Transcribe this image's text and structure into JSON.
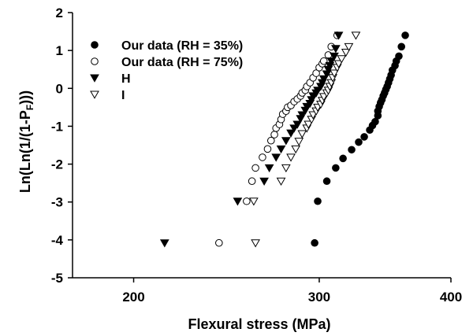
{
  "chart_data": {
    "type": "scatter",
    "title": "",
    "xlabel": "Flexural stress (MPa)",
    "ylabel_parts": [
      "Ln(Ln(1/(1-P",
      "F",
      ")))"
    ],
    "xscale": "log",
    "xlim": [
      175,
      400
    ],
    "ylim": [
      -5,
      2
    ],
    "xticks": [
      200,
      300,
      400
    ],
    "yticks": [
      2,
      1,
      0,
      -1,
      -2,
      -3,
      -4,
      -5
    ],
    "grid": false,
    "legend_position": "top-left",
    "series": [
      {
        "name": "Our data (RH = 35%)",
        "marker": "filled-circle",
        "points": [
          [
            297,
            -4.08
          ],
          [
            299,
            -2.98
          ],
          [
            305,
            -2.45
          ],
          [
            311,
            -2.1
          ],
          [
            316,
            -1.85
          ],
          [
            322,
            -1.62
          ],
          [
            327,
            -1.42
          ],
          [
            331,
            -1.28
          ],
          [
            335,
            -1.1
          ],
          [
            337,
            -0.98
          ],
          [
            339,
            -0.88
          ],
          [
            341,
            -0.72
          ],
          [
            341,
            -0.6
          ],
          [
            342,
            -0.48
          ],
          [
            343,
            -0.38
          ],
          [
            344,
            -0.3
          ],
          [
            345,
            -0.2
          ],
          [
            346,
            -0.12
          ],
          [
            347,
            -0.03
          ],
          [
            348,
            0.05
          ],
          [
            349,
            0.15
          ],
          [
            350,
            0.25
          ],
          [
            351,
            0.35
          ],
          [
            352,
            0.48
          ],
          [
            354,
            0.6
          ],
          [
            355,
            0.72
          ],
          [
            357,
            0.85
          ],
          [
            359,
            1.1
          ],
          [
            362,
            1.4
          ]
        ]
      },
      {
        "name": "Our data (RH = 75%)",
        "marker": "open-circle",
        "points": [
          [
            241,
            -4.08
          ],
          [
            256,
            -2.98
          ],
          [
            259,
            -2.45
          ],
          [
            261,
            -2.1
          ],
          [
            265,
            -1.82
          ],
          [
            268,
            -1.6
          ],
          [
            270,
            -1.38
          ],
          [
            272,
            -1.22
          ],
          [
            273,
            -1.05
          ],
          [
            275,
            -0.95
          ],
          [
            276,
            -0.82
          ],
          [
            277,
            -0.68
          ],
          [
            279,
            -0.6
          ],
          [
            280,
            -0.5
          ],
          [
            282,
            -0.45
          ],
          [
            284,
            -0.35
          ],
          [
            286,
            -0.28
          ],
          [
            288,
            -0.2
          ],
          [
            289,
            -0.12
          ],
          [
            291,
            -0.05
          ],
          [
            292,
            0.05
          ],
          [
            294,
            0.15
          ],
          [
            296,
            0.28
          ],
          [
            298,
            0.4
          ],
          [
            300,
            0.55
          ],
          [
            302,
            0.65
          ],
          [
            303,
            0.72
          ],
          [
            306,
            0.88
          ],
          [
            308,
            1.1
          ],
          [
            312,
            1.4
          ]
        ]
      },
      {
        "name": "H",
        "marker": "filled-triangle-down",
        "points": [
          [
            214,
            -4.08
          ],
          [
            251,
            -2.98
          ],
          [
            266,
            -2.45
          ],
          [
            269,
            -2.1
          ],
          [
            273,
            -1.82
          ],
          [
            276,
            -1.6
          ],
          [
            279,
            -1.38
          ],
          [
            282,
            -1.18
          ],
          [
            284,
            -1.05
          ],
          [
            286,
            -0.95
          ],
          [
            288,
            -0.8
          ],
          [
            289,
            -0.7
          ],
          [
            291,
            -0.58
          ],
          [
            292,
            -0.48
          ],
          [
            294,
            -0.4
          ],
          [
            295,
            -0.3
          ],
          [
            296,
            -0.2
          ],
          [
            298,
            -0.12
          ],
          [
            299,
            -0.05
          ],
          [
            301,
            0.05
          ],
          [
            302,
            0.15
          ],
          [
            303,
            0.25
          ],
          [
            305,
            0.38
          ],
          [
            306,
            0.5
          ],
          [
            307,
            0.6
          ],
          [
            308,
            0.72
          ],
          [
            310,
            0.85
          ],
          [
            311,
            1.05
          ],
          [
            313,
            1.4
          ]
        ]
      },
      {
        "name": "I",
        "marker": "open-triangle-down",
        "points": [
          [
            261,
            -4.08
          ],
          [
            260,
            -2.98
          ],
          [
            276,
            -2.45
          ],
          [
            279,
            -2.1
          ],
          [
            282,
            -1.82
          ],
          [
            285,
            -1.6
          ],
          [
            287,
            -1.4
          ],
          [
            289,
            -1.2
          ],
          [
            292,
            -1.05
          ],
          [
            293,
            -0.95
          ],
          [
            295,
            -0.82
          ],
          [
            296,
            -0.7
          ],
          [
            298,
            -0.6
          ],
          [
            299,
            -0.5
          ],
          [
            301,
            -0.42
          ],
          [
            302,
            -0.32
          ],
          [
            303,
            -0.22
          ],
          [
            305,
            -0.12
          ],
          [
            306,
            -0.05
          ],
          [
            307,
            0.05
          ],
          [
            308,
            0.15
          ],
          [
            309,
            0.28
          ],
          [
            310,
            0.4
          ],
          [
            312,
            0.55
          ],
          [
            313,
            0.65
          ],
          [
            315,
            0.78
          ],
          [
            318,
            0.95
          ],
          [
            320,
            1.1
          ],
          [
            325,
            1.4
          ]
        ]
      }
    ]
  }
}
